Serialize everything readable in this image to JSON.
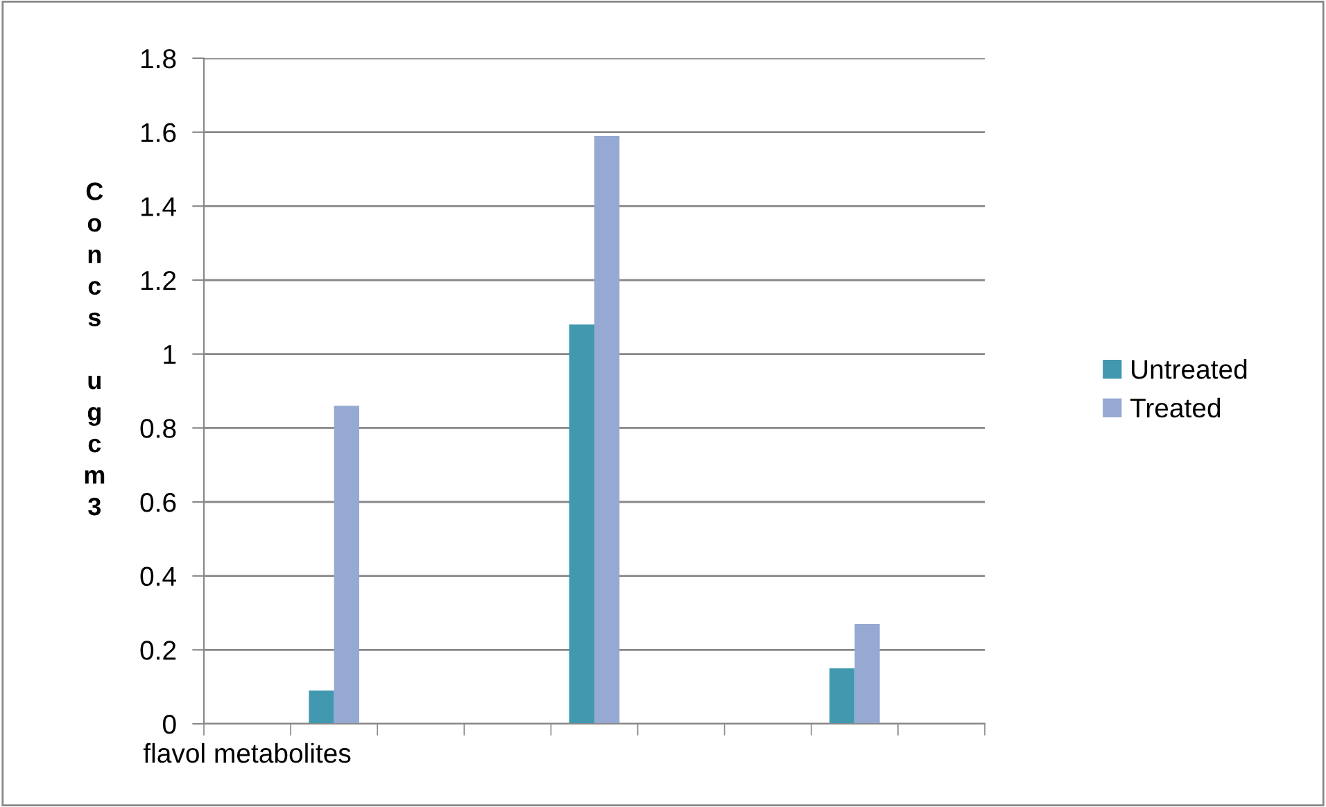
{
  "chart_data": {
    "type": "bar",
    "ylabel": "Concs ugcm3",
    "categories": [
      "flavol metabolites",
      null,
      null,
      null,
      null,
      null,
      null,
      null,
      null
    ],
    "series": [
      {
        "name": "Untreated",
        "color": "#4198af",
        "values": [
          null,
          0.09,
          null,
          null,
          1.08,
          null,
          null,
          0.15,
          null
        ]
      },
      {
        "name": "Treated",
        "color": "#95a9d2",
        "values": [
          null,
          0.86,
          null,
          null,
          1.59,
          null,
          null,
          0.27,
          null
        ]
      }
    ],
    "ylim": [
      0,
      1.8
    ],
    "yticks": [
      0,
      0.2,
      0.4,
      0.6,
      0.8,
      1,
      1.2,
      1.4,
      1.6,
      1.8
    ],
    "grid": "y",
    "legend": "right"
  }
}
